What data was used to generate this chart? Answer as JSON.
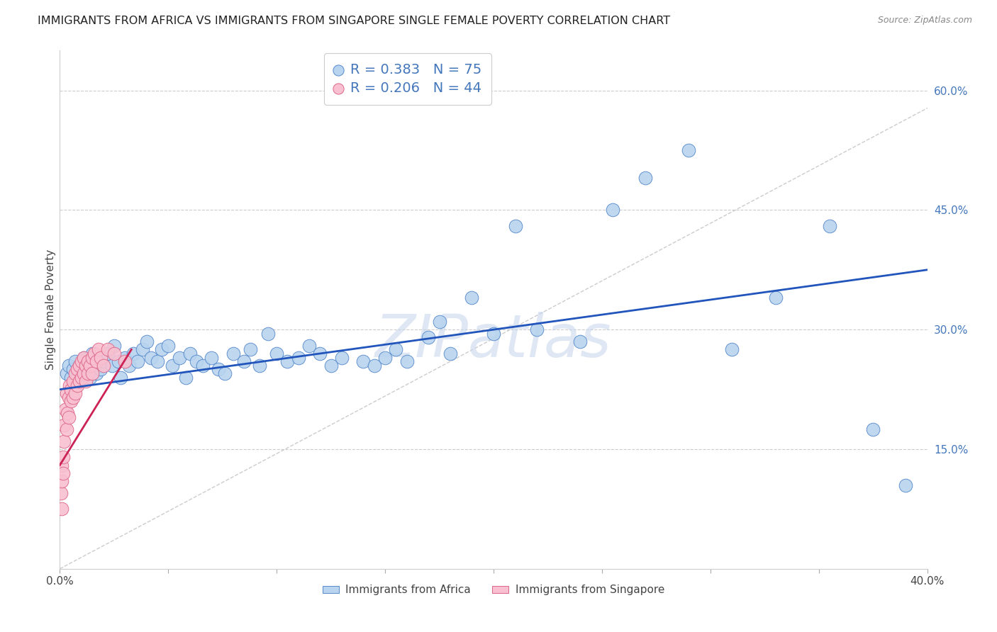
{
  "title": "IMMIGRANTS FROM AFRICA VS IMMIGRANTS FROM SINGAPORE SINGLE FEMALE POVERTY CORRELATION CHART",
  "source": "Source: ZipAtlas.com",
  "ylabel": "Single Female Poverty",
  "xlim": [
    0.0,
    0.4
  ],
  "ylim": [
    0.0,
    0.65
  ],
  "xticks": [
    0.0,
    0.05,
    0.1,
    0.15,
    0.2,
    0.25,
    0.3,
    0.35,
    0.4
  ],
  "yticks_right": [
    0.15,
    0.3,
    0.45,
    0.6
  ],
  "ytick_labels_right": [
    "15.0%",
    "30.0%",
    "45.0%",
    "60.0%"
  ],
  "africa_color": "#b8d4ee",
  "africa_edge": "#5588cc",
  "singapore_color": "#f8c0d0",
  "singapore_edge": "#dd6688",
  "trendline_africa_color": "#2255bb",
  "trendline_singapore_color": "#cc2255",
  "legend_R_africa": "R = 0.383",
  "legend_N_africa": "N = 75",
  "legend_R_singapore": "R = 0.206",
  "legend_N_singapore": "N = 44",
  "legend_label_africa": "Immigrants from Africa",
  "legend_label_singapore": "Immigrants from Singapore",
  "africa_x": [
    0.003,
    0.004,
    0.005,
    0.006,
    0.007,
    0.008,
    0.009,
    0.01,
    0.011,
    0.012,
    0.013,
    0.014,
    0.015,
    0.016,
    0.017,
    0.018,
    0.019,
    0.02,
    0.022,
    0.024,
    0.025,
    0.027,
    0.028,
    0.03,
    0.032,
    0.034,
    0.036,
    0.038,
    0.04,
    0.042,
    0.045,
    0.047,
    0.05,
    0.052,
    0.055,
    0.058,
    0.06,
    0.063,
    0.066,
    0.07,
    0.073,
    0.076,
    0.08,
    0.085,
    0.088,
    0.092,
    0.096,
    0.1,
    0.105,
    0.11,
    0.115,
    0.12,
    0.125,
    0.13,
    0.14,
    0.145,
    0.15,
    0.155,
    0.16,
    0.17,
    0.175,
    0.18,
    0.19,
    0.2,
    0.21,
    0.22,
    0.24,
    0.255,
    0.27,
    0.29,
    0.31,
    0.33,
    0.355,
    0.375,
    0.39
  ],
  "africa_y": [
    0.245,
    0.255,
    0.24,
    0.25,
    0.26,
    0.245,
    0.255,
    0.235,
    0.265,
    0.25,
    0.26,
    0.24,
    0.27,
    0.255,
    0.245,
    0.265,
    0.25,
    0.26,
    0.27,
    0.255,
    0.28,
    0.26,
    0.24,
    0.265,
    0.255,
    0.27,
    0.26,
    0.275,
    0.285,
    0.265,
    0.26,
    0.275,
    0.28,
    0.255,
    0.265,
    0.24,
    0.27,
    0.26,
    0.255,
    0.265,
    0.25,
    0.245,
    0.27,
    0.26,
    0.275,
    0.255,
    0.295,
    0.27,
    0.26,
    0.265,
    0.28,
    0.27,
    0.255,
    0.265,
    0.26,
    0.255,
    0.265,
    0.275,
    0.26,
    0.29,
    0.31,
    0.27,
    0.34,
    0.295,
    0.43,
    0.3,
    0.285,
    0.45,
    0.49,
    0.525,
    0.275,
    0.34,
    0.43,
    0.175,
    0.105
  ],
  "singapore_x": [
    0.0005,
    0.0008,
    0.001,
    0.001,
    0.0015,
    0.0015,
    0.002,
    0.002,
    0.0025,
    0.003,
    0.003,
    0.0035,
    0.004,
    0.004,
    0.0045,
    0.005,
    0.005,
    0.006,
    0.006,
    0.007,
    0.007,
    0.008,
    0.008,
    0.009,
    0.009,
    0.01,
    0.01,
    0.011,
    0.011,
    0.012,
    0.012,
    0.013,
    0.013,
    0.014,
    0.015,
    0.015,
    0.016,
    0.017,
    0.018,
    0.019,
    0.02,
    0.022,
    0.025,
    0.03
  ],
  "singapore_y": [
    0.095,
    0.075,
    0.13,
    0.11,
    0.14,
    0.12,
    0.18,
    0.16,
    0.2,
    0.175,
    0.22,
    0.195,
    0.215,
    0.19,
    0.23,
    0.21,
    0.225,
    0.235,
    0.215,
    0.245,
    0.22,
    0.25,
    0.23,
    0.255,
    0.235,
    0.26,
    0.24,
    0.265,
    0.245,
    0.255,
    0.235,
    0.26,
    0.245,
    0.255,
    0.265,
    0.245,
    0.27,
    0.26,
    0.275,
    0.265,
    0.255,
    0.275,
    0.27,
    0.26
  ],
  "watermark": "ZIPatlas",
  "watermark_color": "#c8d8ec",
  "background_color": "#ffffff",
  "grid_color": "#cccccc",
  "title_fontsize": 11.5,
  "axis_label_fontsize": 11,
  "tick_fontsize": 11,
  "legend_fontsize": 14
}
